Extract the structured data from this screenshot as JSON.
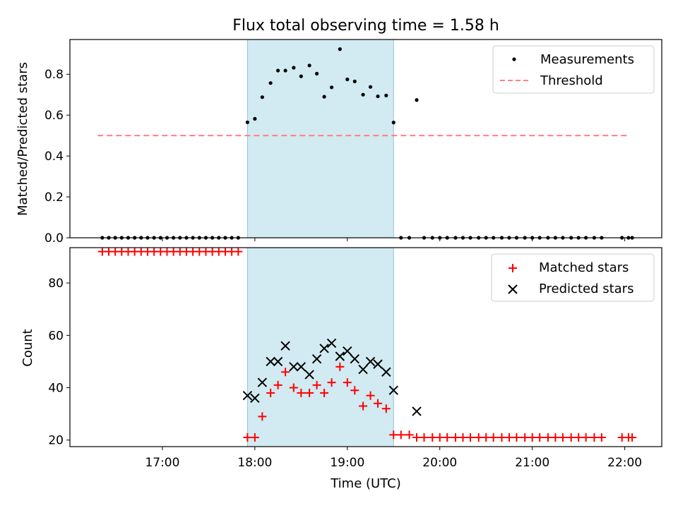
{
  "figure_title": "Flux total observing time = 1.58 h",
  "colors": {
    "measurement": "#000000",
    "threshold": "#ff7f7f",
    "matched": "#ff0000",
    "predicted": "#000000",
    "window": "#add8e6"
  },
  "chart_data": [
    {
      "type": "scatter",
      "ylabel": "Matched/Predicted stars",
      "xlim": [
        16.0,
        22.4
      ],
      "ylim": [
        0,
        0.97
      ],
      "yticks": [
        0.0,
        0.2,
        0.4,
        0.6,
        0.8
      ],
      "ytick_labels": [
        "0.0",
        "0.2",
        "0.4",
        "0.6",
        "0.8"
      ],
      "grid": false,
      "legend": "top-right",
      "observing_window": [
        17.92,
        19.5
      ],
      "threshold": {
        "y": 0.5,
        "x": [
          16.3,
          22.05
        ]
      },
      "series": [
        {
          "name": "Measurements",
          "x": [
            16.35,
            16.42,
            16.49,
            16.56,
            16.63,
            16.7,
            16.77,
            16.84,
            16.91,
            16.98,
            17.05,
            17.12,
            17.19,
            17.26,
            17.33,
            17.4,
            17.47,
            17.54,
            17.61,
            17.68,
            17.75,
            17.82,
            17.92,
            18.0,
            18.08,
            18.17,
            18.25,
            18.33,
            18.42,
            18.5,
            18.59,
            18.67,
            18.75,
            18.83,
            18.92,
            19.0,
            19.08,
            19.17,
            19.25,
            19.33,
            19.42,
            19.5,
            19.58,
            19.67,
            19.83,
            19.92,
            20.0,
            20.08,
            20.17,
            20.25,
            20.33,
            20.42,
            20.5,
            20.58,
            20.67,
            20.75,
            20.83,
            20.92,
            21.0,
            21.08,
            21.17,
            21.25,
            21.33,
            21.42,
            21.5,
            21.58,
            21.67,
            21.75,
            21.97,
            22.04,
            22.08
          ],
          "y": [
            0,
            0,
            0,
            0,
            0,
            0,
            0,
            0,
            0,
            0,
            0,
            0,
            0,
            0,
            0,
            0,
            0,
            0,
            0,
            0,
            0,
            0,
            0.565,
            0.582,
            0.688,
            0.757,
            0.818,
            0.818,
            0.832,
            0.79,
            0.843,
            0.803,
            0.69,
            0.736,
            0.923,
            0.775,
            0.765,
            0.7,
            0.738,
            0.692,
            0.696,
            0.564,
            0,
            0,
            0,
            0,
            0,
            0,
            0,
            0,
            0,
            0,
            0,
            0,
            0,
            0,
            0,
            0,
            0,
            0,
            0,
            0,
            0,
            0,
            0,
            0,
            0,
            0,
            0,
            0,
            0
          ]
        },
        {
          "name": "Measurements",
          "x": [
            19.75
          ],
          "y": [
            0.674
          ]
        }
      ]
    },
    {
      "type": "scatter",
      "ylabel": "Count",
      "xlabel": "Time (UTC)",
      "xlim": [
        16.0,
        22.4
      ],
      "ylim": [
        17.5,
        93.5
      ],
      "yticks": [
        20,
        40,
        60,
        80
      ],
      "ytick_labels": [
        "20",
        "40",
        "60",
        "80"
      ],
      "xticks": [
        17,
        18,
        19,
        20,
        21,
        22
      ],
      "xtick_labels": [
        "17:00",
        "18:00",
        "19:00",
        "20:00",
        "21:00",
        "22:00"
      ],
      "grid": false,
      "legend": "top-right",
      "observing_window": [
        17.92,
        19.5
      ],
      "series": [
        {
          "name": "Matched stars",
          "marker": "+",
          "x": [
            16.35,
            16.42,
            16.49,
            16.56,
            16.63,
            16.7,
            16.77,
            16.84,
            16.91,
            16.98,
            17.05,
            17.12,
            17.19,
            17.26,
            17.33,
            17.4,
            17.47,
            17.54,
            17.61,
            17.68,
            17.75,
            17.82,
            17.92,
            18.0,
            18.08,
            18.17,
            18.25,
            18.33,
            18.42,
            18.5,
            18.59,
            18.67,
            18.75,
            18.83,
            18.92,
            19.0,
            19.08,
            19.17,
            19.25,
            19.33,
            19.42,
            19.5,
            19.58,
            19.67,
            19.75,
            19.83,
            19.92,
            20.0,
            20.08,
            20.17,
            20.25,
            20.33,
            20.42,
            20.5,
            20.58,
            20.67,
            20.75,
            20.83,
            20.92,
            21.0,
            21.08,
            21.17,
            21.25,
            21.33,
            21.42,
            21.5,
            21.58,
            21.67,
            21.75,
            21.97,
            22.04,
            22.08
          ],
          "y": [
            92,
            92,
            92,
            92,
            92,
            92,
            92,
            92,
            92,
            92,
            92,
            92,
            92,
            92,
            92,
            92,
            92,
            92,
            92,
            92,
            92,
            92,
            21,
            21,
            29,
            38,
            41,
            46,
            40,
            38,
            38,
            41,
            38,
            42,
            48,
            42,
            39,
            33,
            37,
            34,
            32,
            22,
            22,
            22,
            21,
            21,
            21,
            21,
            21,
            21,
            21,
            21,
            21,
            21,
            21,
            21,
            21,
            21,
            21,
            21,
            21,
            21,
            21,
            21,
            21,
            21,
            21,
            21,
            21,
            21,
            21,
            21
          ]
        },
        {
          "name": "Predicted stars",
          "marker": "x",
          "x": [
            17.92,
            18.0,
            18.08,
            18.17,
            18.25,
            18.33,
            18.42,
            18.5,
            18.59,
            18.67,
            18.75,
            18.83,
            18.92,
            19.0,
            19.08,
            19.17,
            19.25,
            19.33,
            19.42,
            19.5,
            19.75
          ],
          "y": [
            37,
            36,
            42,
            50,
            50,
            56,
            48,
            48,
            45,
            51,
            55,
            57,
            52,
            54,
            51,
            47,
            50,
            49,
            46,
            39,
            31
          ]
        }
      ]
    }
  ]
}
